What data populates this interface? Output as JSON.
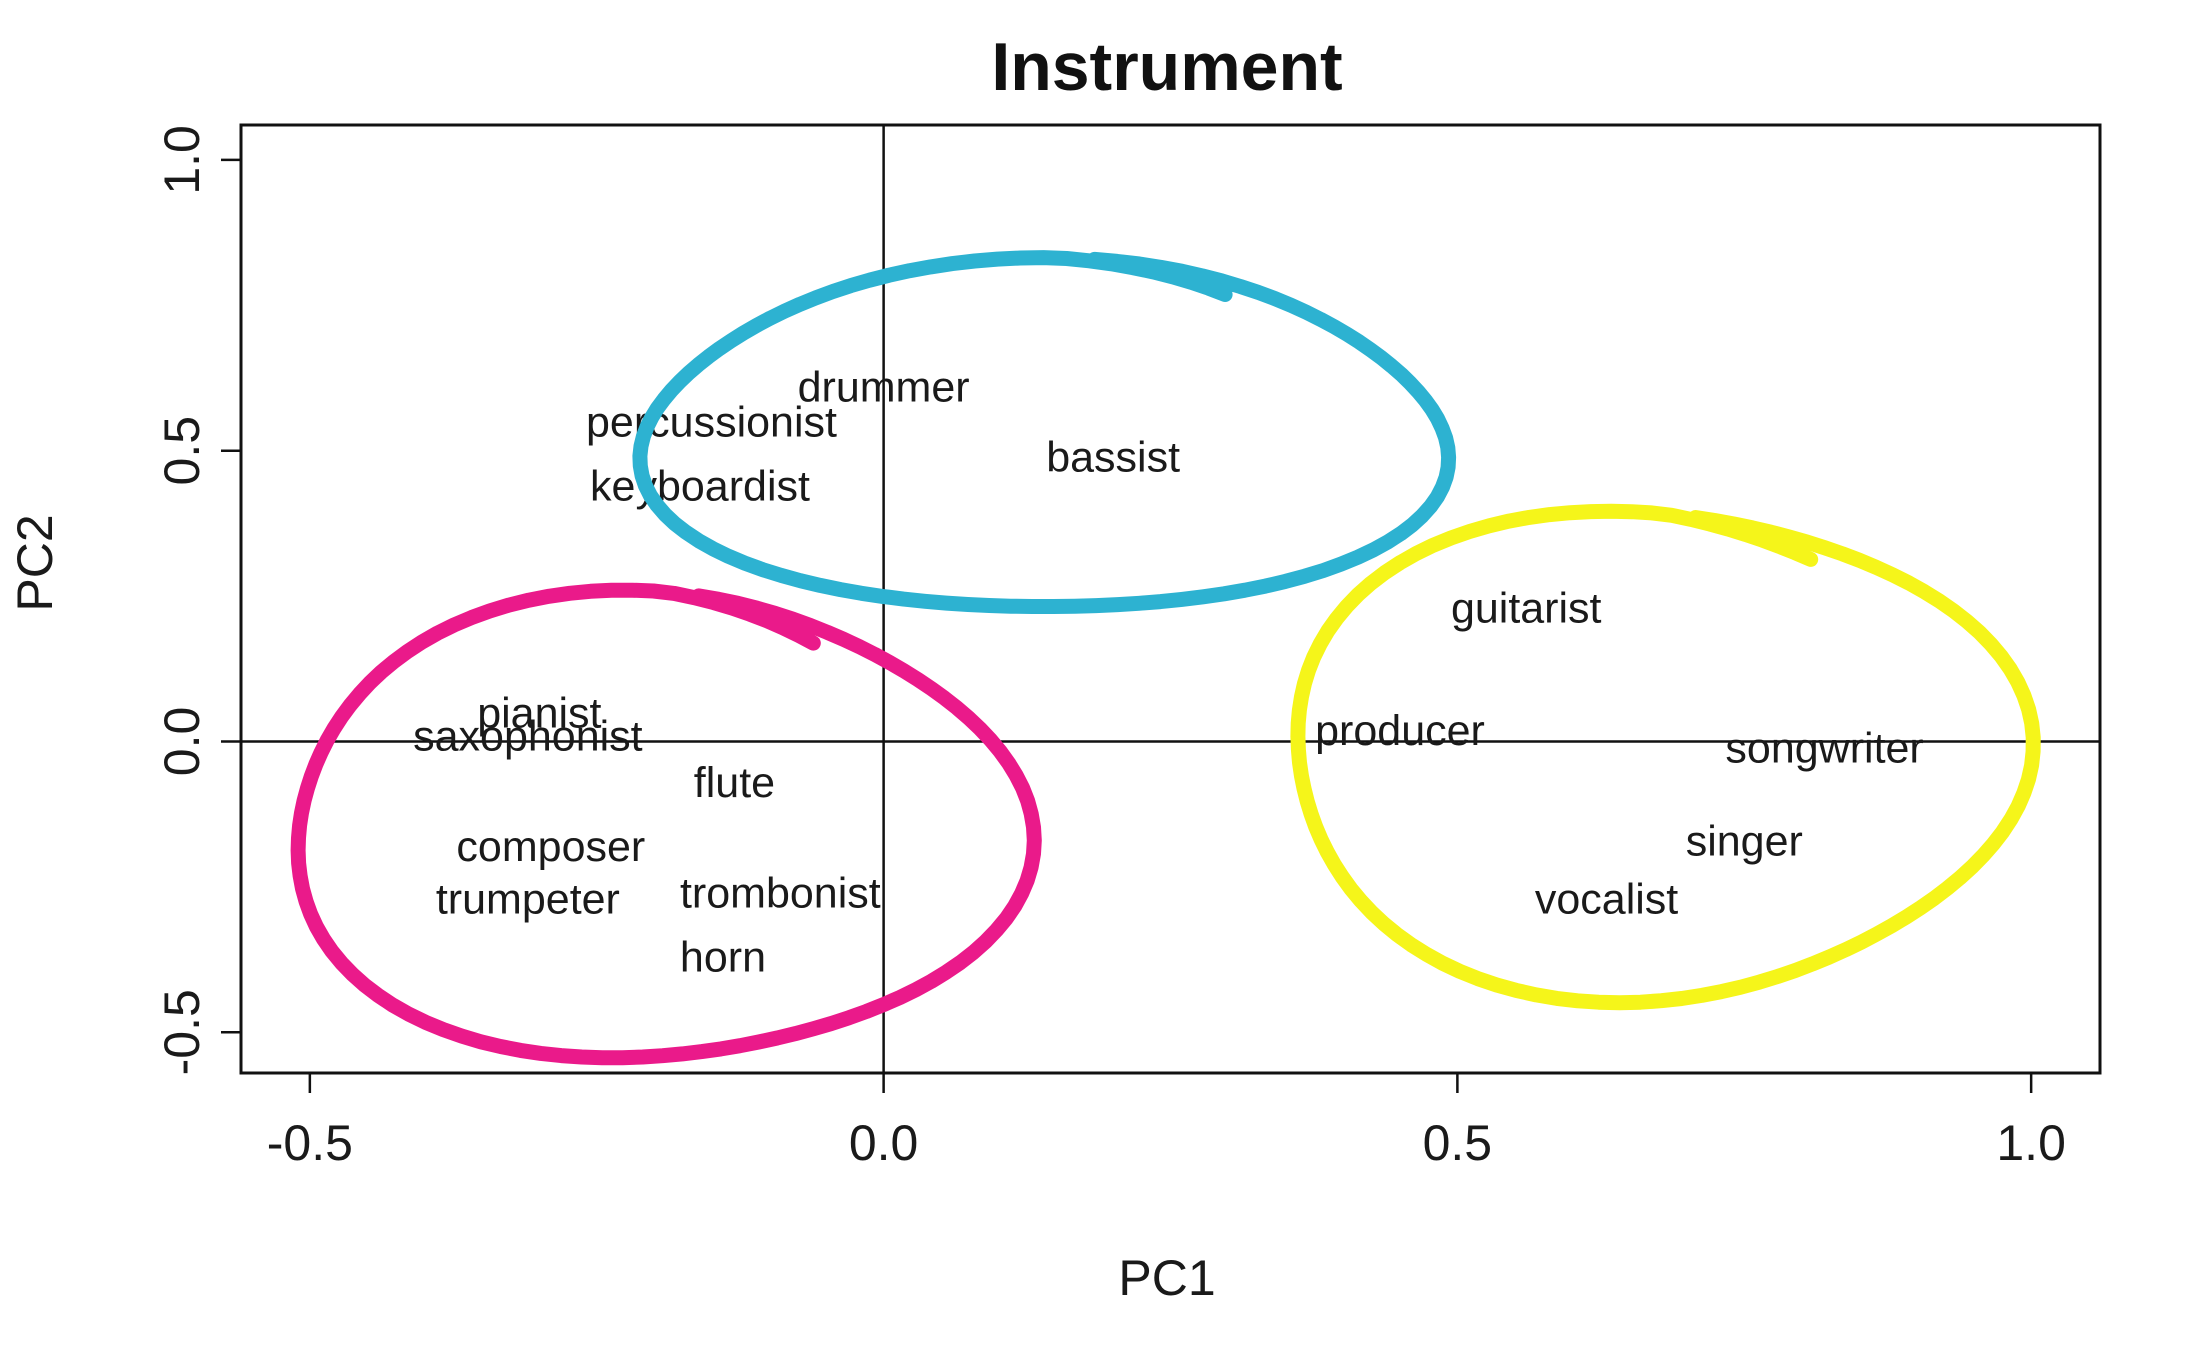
{
  "chart_data": {
    "type": "scatter",
    "title": "Instrument",
    "xlabel": "PC1",
    "ylabel": "PC2",
    "xlim": [
      -0.56,
      1.06
    ],
    "ylim": [
      -0.57,
      1.06
    ],
    "x_ticks": [
      -0.5,
      0.0,
      0.5,
      1.0
    ],
    "y_ticks": [
      -0.5,
      0.0,
      0.5,
      1.0
    ],
    "x_tick_labels": [
      "-0.5",
      "0.0",
      "0.5",
      "1.0"
    ],
    "y_tick_labels": [
      "-0.5",
      "0.0",
      "0.5",
      "1.0"
    ],
    "reference_lines": {
      "x": 0.0,
      "y": 0.0
    },
    "grid": false,
    "points": [
      {
        "label": "drummer",
        "x": 0.0,
        "y": 0.61
      },
      {
        "label": "percussionist",
        "x": -0.15,
        "y": 0.55
      },
      {
        "label": "keyboardist",
        "x": -0.16,
        "y": 0.44
      },
      {
        "label": "bassist",
        "x": 0.2,
        "y": 0.49
      },
      {
        "label": "pianist",
        "x": -0.3,
        "y": 0.05
      },
      {
        "label": "saxophonist",
        "x": -0.31,
        "y": 0.01
      },
      {
        "label": "flute",
        "x": -0.13,
        "y": -0.07
      },
      {
        "label": "composer",
        "x": -0.29,
        "y": -0.18
      },
      {
        "label": "trumpeter",
        "x": -0.31,
        "y": -0.27
      },
      {
        "label": "trombonist",
        "x": -0.09,
        "y": -0.26
      },
      {
        "label": "horn",
        "x": -0.14,
        "y": -0.37
      },
      {
        "label": "guitarist",
        "x": 0.56,
        "y": 0.23
      },
      {
        "label": "producer",
        "x": 0.45,
        "y": 0.02
      },
      {
        "label": "songwriter",
        "x": 0.82,
        "y": -0.01
      },
      {
        "label": "singer",
        "x": 0.75,
        "y": -0.17
      },
      {
        "label": "vocalist",
        "x": 0.63,
        "y": -0.27
      }
    ],
    "clusters": [
      {
        "color": "#2db2d1",
        "cx": 0.14,
        "cy": 0.52,
        "rx": 0.35,
        "ry": 0.3,
        "members": [
          "drummer",
          "percussionist",
          "keyboardist",
          "bassist"
        ]
      },
      {
        "color": "#ea1a8a",
        "cx": -0.2,
        "cy": -0.15,
        "rx": 0.32,
        "ry": 0.4,
        "members": [
          "pianist",
          "saxophonist",
          "flute",
          "composer",
          "trumpeter",
          "trombonist",
          "horn"
        ]
      },
      {
        "color": "#f5f51a",
        "cx": 0.67,
        "cy": -0.02,
        "rx": 0.32,
        "ry": 0.42,
        "members": [
          "guitarist",
          "producer",
          "songwriter",
          "singer",
          "vocalist"
        ]
      }
    ]
  }
}
